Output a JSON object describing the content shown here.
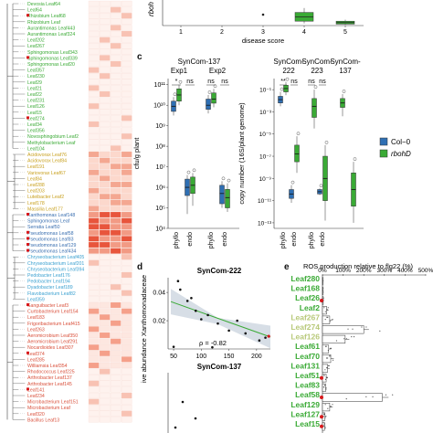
{
  "tree": {
    "labels": [
      {
        "text": "Devosia Leaf64",
        "color": "#3aaa35"
      },
      {
        "text": "Leaf64",
        "color": "#3aaa35"
      },
      {
        "text": "Rhizobium Leaf68",
        "color": "#3aaa35"
      },
      {
        "text": "Rhizobium Leaf",
        "color": "#3aaa35"
      },
      {
        "text": "Aurantimonas Leaf443",
        "color": "#3aaa35"
      },
      {
        "text": "Aurantimonas Leaf324",
        "color": "#3aaa35"
      },
      {
        "text": "Leaf202",
        "color": "#3aaa35"
      },
      {
        "text": "Leaf267",
        "color": "#3aaa35"
      },
      {
        "text": "Sphingomonas Leaf343",
        "color": "#3aaa35"
      },
      {
        "text": "Sphingomonas Leaf339",
        "color": "#3aaa35"
      },
      {
        "text": "Sphingomonas Leaf20",
        "color": "#3aaa35"
      },
      {
        "text": "Leaf357",
        "color": "#3aaa35"
      },
      {
        "text": "Leaf230",
        "color": "#3aaa35"
      },
      {
        "text": "Leaf29",
        "color": "#3aaa35"
      },
      {
        "text": "Leaf21",
        "color": "#3aaa35"
      },
      {
        "text": "Leaf22",
        "color": "#3aaa35"
      },
      {
        "text": "Leaf231",
        "color": "#3aaa35"
      },
      {
        "text": "Leaf126",
        "color": "#3aaa35"
      },
      {
        "text": "Leaf15",
        "color": "#3aaa35"
      },
      {
        "text": "Leaf274",
        "color": "#3aaa35"
      },
      {
        "text": "Leaf34",
        "color": "#3aaa35"
      },
      {
        "text": "Leaf356",
        "color": "#3aaa35"
      },
      {
        "text": "Novosphingobium Leaf2",
        "color": "#3aaa35"
      },
      {
        "text": "Methylobacterium Leaf",
        "color": "#3aaa35"
      },
      {
        "text": "Leaf104",
        "color": "#3aaa35"
      },
      {
        "text": "Acidovorax Leaf76",
        "color": "#c8a01e"
      },
      {
        "text": "Acidovorax Leaf84",
        "color": "#c8a01e"
      },
      {
        "text": "Leaf191",
        "color": "#c8a01e"
      },
      {
        "text": "Variovorax Leaf67",
        "color": "#c8a01e"
      },
      {
        "text": "Leaf84",
        "color": "#c8a01e"
      },
      {
        "text": "Leaf288",
        "color": "#c8a01e"
      },
      {
        "text": "Leaf203",
        "color": "#c8a01e"
      },
      {
        "text": "Luteibacter Leaf2",
        "color": "#c8a01e"
      },
      {
        "text": "Leaf178",
        "color": "#c8a01e"
      },
      {
        "text": "Massilia Leaf177",
        "color": "#c8a01e"
      },
      {
        "text": "Xanthomonas Leaf148",
        "color": "#3a6fb0"
      },
      {
        "text": "Sphingomonas Leaf",
        "color": "#3a6fb0"
      },
      {
        "text": "Serratia Leaf50",
        "color": "#3a6fb0"
      },
      {
        "text": "Pseudomonas Leaf58",
        "color": "#3a6fb0"
      },
      {
        "text": "Pseudomonas Leaf83",
        "color": "#3a6fb0"
      },
      {
        "text": "Pseudomonas Leaf129",
        "color": "#3a6fb0"
      },
      {
        "text": "Pseudomonas Leaf434",
        "color": "#3a6fb0"
      },
      {
        "text": "Chryseobacterium Leaf405",
        "color": "#3aa0d0"
      },
      {
        "text": "Chryseobacterium Leaf201",
        "color": "#3aa0d0"
      },
      {
        "text": "Chryseobacterium Leaf394",
        "color": "#3aa0d0"
      },
      {
        "text": "Pedobacter Leaf176",
        "color": "#3aa0d0"
      },
      {
        "text": "Pedobacter Leaf194",
        "color": "#3aa0d0"
      },
      {
        "text": "Dyadobacter Leaf189",
        "color": "#3aa0d0"
      },
      {
        "text": "Flavobacterium Leaf82",
        "color": "#3aa0d0"
      },
      {
        "text": "Leaf359",
        "color": "#3aa0d0"
      },
      {
        "text": "Sanguibacter Leaf3",
        "color": "#d94f3a"
      },
      {
        "text": "Curtobacterium Leaf154",
        "color": "#d94f3a"
      },
      {
        "text": "Leaf183",
        "color": "#d94f3a"
      },
      {
        "text": "Frigoribacterium Leaf415",
        "color": "#d94f3a"
      },
      {
        "text": "Leaf263",
        "color": "#d94f3a"
      },
      {
        "text": "Aeromicrobium Leaf350",
        "color": "#d94f3a"
      },
      {
        "text": "Aeromicrobium Leaf291",
        "color": "#d94f3a"
      },
      {
        "text": "Nocardioides Leaf307",
        "color": "#d94f3a"
      },
      {
        "text": "Leaf374",
        "color": "#d94f3a"
      },
      {
        "text": "Leaf285",
        "color": "#d94f3a"
      },
      {
        "text": "Williamsia Leaf354",
        "color": "#d94f3a"
      },
      {
        "text": "Rhodococcus Leaf225",
        "color": "#d94f3a"
      },
      {
        "text": "Arthrobacter Leaf137",
        "color": "#d94f3a"
      },
      {
        "text": "Arthrobacter Leaf145",
        "color": "#d94f3a"
      },
      {
        "text": "Leaf141",
        "color": "#d94f3a"
      },
      {
        "text": "Leaf234",
        "color": "#d94f3a"
      },
      {
        "text": "Microbacterium Leaf151",
        "color": "#d94f3a"
      },
      {
        "text": "Microbacterium Leaf",
        "color": "#d94f3a"
      },
      {
        "text": "Leaf320",
        "color": "#d94f3a"
      },
      {
        "text": "Bacillus Leaf13",
        "color": "#d94f3a"
      }
    ]
  },
  "panels": {
    "c": "c",
    "d": "d",
    "e": "e"
  },
  "chart_data": [
    {
      "type": "box",
      "id": "top-disease-score",
      "xlabel": "disease score",
      "ylabel_fragment": "rboh",
      "categories": [
        "1",
        "2",
        "3",
        "4",
        "5"
      ],
      "boxes": [
        {
          "category": "3",
          "points": [
            1
          ]
        },
        {
          "category": "4",
          "q1": 0.6,
          "median": 1.2,
          "q3": 1.8,
          "whisker_low": 0.3,
          "whisker_high": 2.4
        },
        {
          "category": "5",
          "q1": 0.2,
          "median": 0.4,
          "q3": 0.6,
          "whisker_low": 0.1,
          "whisker_high": 0.8
        }
      ],
      "ylim": [
        0,
        3.2
      ]
    },
    {
      "type": "box",
      "id": "c-left",
      "title": "SynCom-137",
      "groups": [
        "Exp1",
        "Exp2"
      ],
      "ylabel": "cfu/g plant",
      "y_scale": "log",
      "y_ticks": [
        "10⁴",
        "10⁵",
        "10⁶",
        "10⁷",
        "10⁸",
        "10⁹",
        "10¹⁰",
        "10¹¹"
      ],
      "ylim_log10": [
        4,
        11.3
      ],
      "x_ticks": [
        "phyllo",
        "endo",
        "phyllo",
        "endo"
      ],
      "significance": [
        "*",
        "ns",
        "ns",
        "ns"
      ],
      "series": [
        {
          "name": "Col−0",
          "color": "#2f6fb3",
          "boxes": [
            {
              "x": "Exp1 phyllo",
              "log10": [
                9.7,
                9.95,
                10.2,
                9.5,
                10.4
              ]
            },
            {
              "x": "Exp1 endo",
              "log10": [
                5.6,
                6.0,
                6.4,
                4.7,
                6.6
              ]
            },
            {
              "x": "Exp2 phyllo",
              "log10": [
                9.8,
                10.0,
                10.3,
                9.6,
                10.5
              ]
            },
            {
              "x": "Exp2 endo",
              "log10": [
                5.2,
                5.7,
                6.1,
                5.0,
                6.3
              ]
            }
          ]
        },
        {
          "name": "rbohD",
          "color": "#3aaa35",
          "boxes": [
            {
              "x": "Exp1 phyllo",
              "log10": [
                10.2,
                10.5,
                10.8,
                10.0,
                11.0
              ]
            },
            {
              "x": "Exp1 endo",
              "log10": [
                5.7,
                6.1,
                6.5,
                5.1,
                6.7
              ]
            },
            {
              "x": "Exp2 phyllo",
              "log10": [
                10.1,
                10.3,
                10.6,
                9.9,
                10.8
              ]
            },
            {
              "x": "Exp2 endo",
              "log10": [
                5.0,
                5.5,
                5.9,
                4.8,
                6.2
              ]
            }
          ]
        }
      ]
    },
    {
      "type": "box",
      "id": "c-right",
      "groups": [
        "SynCom-222",
        "SynCom-223",
        "SynCom-137"
      ],
      "ylabel": "copy number (16S/plant genome)",
      "y_scale": "log",
      "y_ticks": [
        "10⁻¹³",
        "10⁻¹¹",
        "10⁻⁹",
        "10⁻⁷",
        "10⁻⁵",
        "10⁻³",
        "10⁻¹"
      ],
      "ylim_log10": [
        -13.5,
        0
      ],
      "x_ticks": [
        "phyllo",
        "endo",
        "phyllo",
        "endo"
      ],
      "significance": [
        "**",
        "ns",
        "ns",
        "ns"
      ],
      "series": [
        {
          "name": "Col−0",
          "color": "#2f6fb3",
          "boxes": [
            {
              "x": "SynCom-222 phyllo",
              "log10": [
                -2.2,
                -1.9,
                -1.6,
                -2.5,
                -1.2
              ]
            },
            {
              "x": "SynCom-222 endo",
              "log10": [
                -10.8,
                -10.4,
                -10.0,
                -11.2,
                -9.6
              ]
            },
            {
              "x": "SynCom-223 endo",
              "log10": [
                -10.4,
                -10.2,
                -10.0,
                -10.5,
                -9.9
              ]
            }
          ]
        },
        {
          "name": "rbohD",
          "color": "#3aaa35",
          "boxes": [
            {
              "x": "SynCom-222 phyllo",
              "log10": [
                -1.2,
                -0.9,
                -0.6,
                -1.5,
                -0.3
              ]
            },
            {
              "x": "SynCom-222 endo",
              "log10": [
                -7.5,
                -6.8,
                -6.0,
                -8.5,
                -5.2
              ]
            },
            {
              "x": "SynCom-223 phyllo",
              "log10": [
                -3.5,
                -2.5,
                -1.8,
                -4.5,
                -1.0
              ]
            },
            {
              "x": "SynCom-223 endo",
              "log10": [
                -11.0,
                -9.0,
                -7.0,
                -12.8,
                -6.0
              ]
            },
            {
              "x": "SynCom-137 phyllo",
              "log10": [
                -2.6,
                -2.2,
                -1.8,
                -3.4,
                -1.4
              ]
            },
            {
              "x": "SynCom-137 endo",
              "log10": [
                -11.5,
                -10.0,
                -8.5,
                -13.0,
                -7.5
              ]
            }
          ]
        }
      ],
      "legend": {
        "position": "right",
        "entries": [
          "Col−0",
          "rbohD"
        ]
      }
    },
    {
      "type": "scatter",
      "id": "d",
      "title": "SynCom-222",
      "title2": "SynCom-137",
      "ylabel": "ive abundance Xanthomonadaceae",
      "x_ticks": [
        "50",
        "100",
        "150",
        "200"
      ],
      "y_ticks": [
        "0.02",
        "0.04"
      ],
      "xlim": [
        40,
        225
      ],
      "ylim": [
        0.0,
        0.053
      ],
      "annotation": "ρ = -0.82",
      "trend": {
        "x": [
          45,
          225
        ],
        "y": [
          0.0335,
          0.0085
        ]
      },
      "points": [
        {
          "x": 58,
          "y": 0.048
        },
        {
          "x": 62,
          "y": 0.042
        },
        {
          "x": 75,
          "y": 0.034
        },
        {
          "x": 82,
          "y": 0.036
        },
        {
          "x": 90,
          "y": 0.027
        },
        {
          "x": 100,
          "y": 0.021
        },
        {
          "x": 112,
          "y": 0.024
        },
        {
          "x": 130,
          "y": 0.018
        },
        {
          "x": 150,
          "y": 0.013
        },
        {
          "x": 165,
          "y": 0.02
        },
        {
          "x": 180,
          "y": 0.011
        },
        {
          "x": 205,
          "y": 0.006
        },
        {
          "x": 216,
          "y": 0.008
        },
        {
          "x": 50,
          "y": 0.0015
        },
        {
          "x": 120,
          "y": 0.0012
        }
      ],
      "red_points": [
        {
          "x": 222,
          "y": 0.009
        }
      ]
    },
    {
      "type": "bar",
      "id": "e",
      "title": "ROS production relative to flg22 (%)",
      "x_ticks": [
        "0%",
        "100%",
        "200%",
        "300%",
        "400%",
        "500%"
      ],
      "xlim": [
        -15,
        500
      ],
      "categories": [
        "Leaf280",
        "Leaf168",
        "Leaf26",
        "Leaf2",
        "Leaf267",
        "Leaf274",
        "Leaf126",
        "Leaf61",
        "Leaf70",
        "Leaf131",
        "Leaf51",
        "Leaf83",
        "Leaf58",
        "Leaf129",
        "Leaf127",
        "Leaf15"
      ],
      "label_colors": [
        "#3aaa35",
        "#3aaa35",
        "#3aaa35",
        "#3aaa35",
        "#b8c97a",
        "#b8c97a",
        "#b8c97a",
        "#3aaa35",
        "#3aaa35",
        "#3aaa35",
        "#3aaa35",
        "#3aaa35",
        "#3aaa35",
        "#3aaa35",
        "#3aaa35",
        "#3aaa35"
      ],
      "red_markers": [
        "Leaf26",
        "Leaf51",
        "Leaf58",
        "Leaf127",
        "Leaf15"
      ],
      "values": [
        2,
        3,
        4,
        20,
        35,
        200,
        110,
        30,
        40,
        25,
        18,
        15,
        290,
        35,
        12,
        10
      ],
      "errors": [
        2,
        2,
        3,
        10,
        15,
        25,
        20,
        12,
        15,
        10,
        8,
        6,
        30,
        15,
        6,
        5
      ]
    }
  ]
}
